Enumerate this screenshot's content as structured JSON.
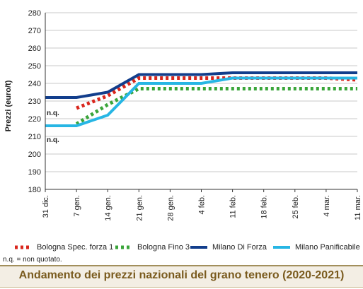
{
  "title": "Andamento dei prezzi nazionali del grano tenero (2020-2021)",
  "note": "n.q. = non quotato.",
  "nq_label": "n.q.",
  "chart_data": {
    "type": "line",
    "ylabel": "Prezzi (euro/t)",
    "ylim": [
      180,
      280
    ],
    "yticks": [
      180,
      190,
      200,
      210,
      220,
      230,
      240,
      250,
      260,
      270,
      280
    ],
    "categories": [
      "31 dic.",
      "7 gen.",
      "14 gen.",
      "21 gen.",
      "28 gen.",
      "4 feb.",
      "11 feb.",
      "18 feb.",
      "25 feb.",
      "4 mar.",
      "11 mar."
    ],
    "grid": "horizontal",
    "legend": "bottom",
    "series": [
      {
        "name": "Bologna Spec. forza 1",
        "color": "#d9261c",
        "style": "dotted",
        "values": [
          null,
          226,
          233,
          243,
          243,
          243,
          243,
          243,
          243,
          243,
          242
        ],
        "nq_at_start": true
      },
      {
        "name": "Bologna Fino 3",
        "color": "#3aa53a",
        "style": "dotted",
        "values": [
          null,
          217,
          228,
          237,
          237,
          237,
          237,
          237,
          237,
          237,
          237
        ],
        "nq_at_start": true
      },
      {
        "name": "Milano Di Forza",
        "color": "#123e8c",
        "style": "solid",
        "values": [
          232,
          232,
          235,
          245,
          245,
          245,
          246,
          246,
          246,
          246,
          246
        ]
      },
      {
        "name": "Milano Panificabile",
        "color": "#27b6e4",
        "style": "solid",
        "values": [
          216,
          216,
          222,
          240,
          240,
          240,
          243,
          243,
          243,
          243,
          243
        ]
      }
    ]
  }
}
